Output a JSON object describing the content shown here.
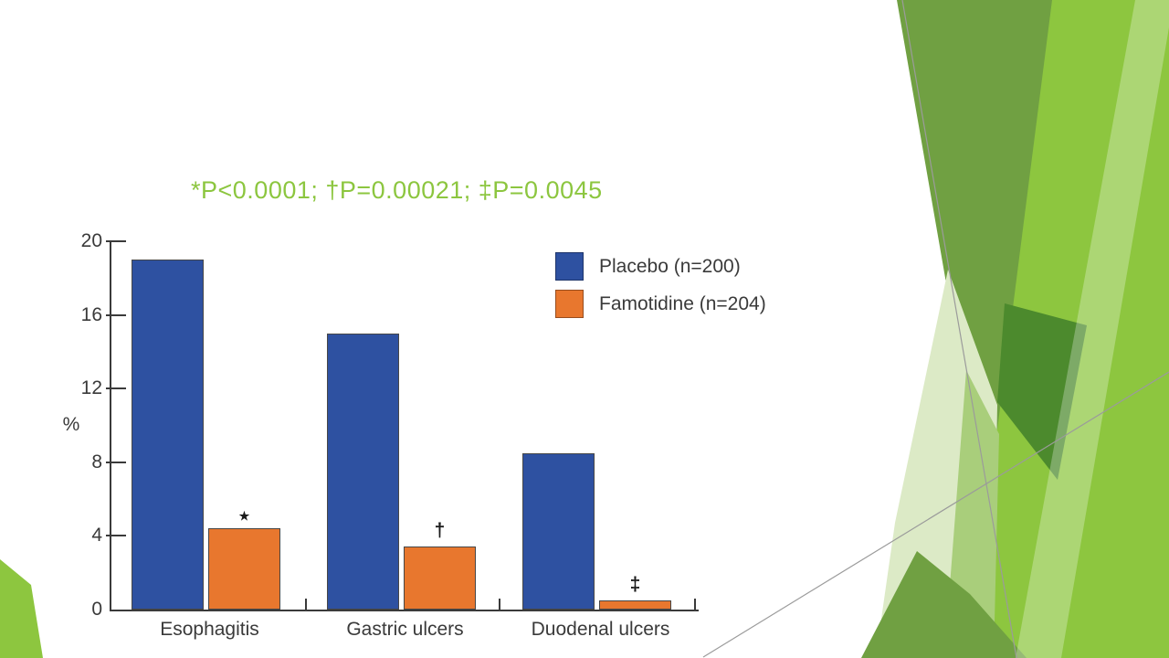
{
  "slide": {
    "type": "presentation-slide",
    "background": "#FFFFFF"
  },
  "annotation": {
    "text": "*P<0.0001; †P=0.00021; ‡P=0.0045",
    "color": "#8CC63F"
  },
  "chart_data": {
    "type": "bar",
    "title": "",
    "categories": [
      "Esophagitis",
      "Gastric ulcers",
      "Duodenal ulcers"
    ],
    "series": [
      {
        "name": "Placebo (n=200)",
        "color": "#2E51A1",
        "values": [
          19,
          15,
          8.5
        ]
      },
      {
        "name": "Famotidine (n=204)",
        "color": "#E8772E",
        "values": [
          4.4,
          3.4,
          0.5
        ]
      }
    ],
    "significance_markers": [
      {
        "glyph": "★",
        "size": 13,
        "category": "Esophagitis",
        "on_series": "Famotidine (n=204)"
      },
      {
        "glyph": "†",
        "size": 21,
        "category": "Gastric ulcers",
        "on_series": "Famotidine (n=204)"
      },
      {
        "glyph": "‡",
        "size": 21,
        "category": "Duodenal ulcers",
        "on_series": "Famotidine (n=204)"
      }
    ],
    "ylabel": "%",
    "yticks": [
      0,
      4,
      8,
      12,
      16,
      20
    ],
    "ylim": [
      0,
      20
    ],
    "grid": false,
    "legend_position": "upper right",
    "axis_color": "#3A3A3A"
  },
  "decoration": {
    "bright_green": "#8DC63F",
    "medium_green": "#70A042",
    "dark_green": "#4C8A2D",
    "pale_green": "#DCEAC6",
    "light_mid_green": "#A9CE7B",
    "line_gray": "#9B9B9B"
  }
}
